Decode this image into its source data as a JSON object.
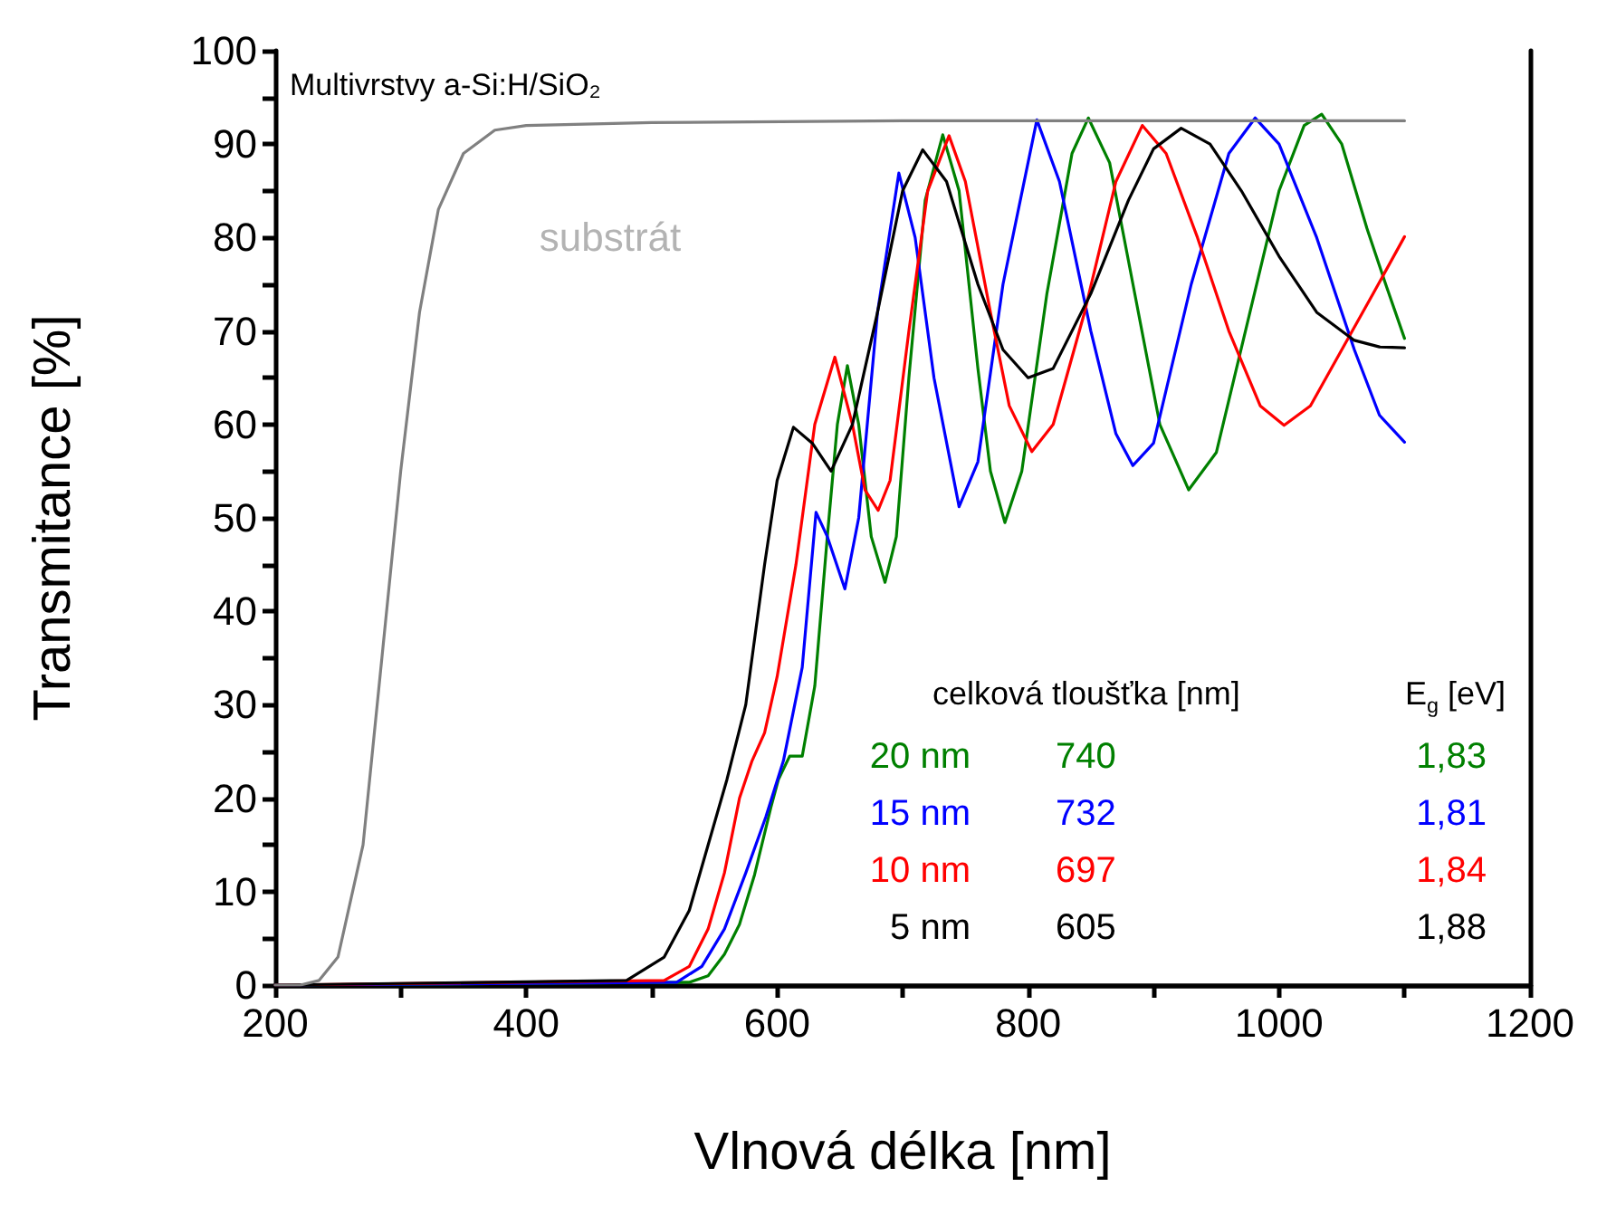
{
  "chart_data": {
    "type": "line",
    "title": "Multivrstvy a-Si:H/SiO₂",
    "xlabel": "Vlnová délka [nm]",
    "ylabel": "Transmitance [%]",
    "xlim": [
      200,
      1200
    ],
    "ylim": [
      0,
      100
    ],
    "xticks": [
      200,
      {
        "value": 300,
        "label": null
      },
      400,
      {
        "value": 500,
        "label": null
      },
      600,
      {
        "value": 700,
        "label": null
      },
      800,
      {
        "value": 900,
        "label": null
      },
      1000,
      {
        "value": 1100,
        "label": null
      },
      1200
    ],
    "yticks": [
      0,
      {
        "value": 5,
        "label": null
      },
      10,
      {
        "value": 15,
        "label": null
      },
      20,
      {
        "value": 25,
        "label": null
      },
      30,
      {
        "value": 35,
        "label": null
      },
      40,
      {
        "value": 45,
        "label": null
      },
      50,
      {
        "value": 55,
        "label": null
      },
      60,
      {
        "value": 65,
        "label": null
      },
      70,
      {
        "value": 75,
        "label": null
      },
      80,
      {
        "value": 85,
        "label": null
      },
      90,
      {
        "value": 95,
        "label": null
      },
      100
    ],
    "grid": false,
    "legend": false,
    "marker": "none",
    "line_style": "solid",
    "annotations": [
      "celková tloušťka [nm]",
      "E$_{g}$ [eV]",
      "740",
      "1,83",
      "732",
      "1,81",
      "697",
      "1,84",
      "605",
      "1,88"
    ],
    "series": [
      {
        "name": "20 nm",
        "color": "#008000",
        "x": [
          200,
          530,
          545,
          558,
          570,
          582,
          595,
          601,
          610,
          620,
          630,
          640,
          648,
          656,
          665,
          675,
          686,
          695,
          705,
          718,
          732,
          745,
          760,
          770,
          781.5,
          795,
          815,
          835,
          848,
          865,
          885,
          905,
          928,
          950,
          975,
          1000,
          1020,
          1034,
          1050,
          1070,
          1085,
          1100
        ],
        "values": [
          0,
          0.3,
          1,
          3.3,
          6.5,
          11.8,
          19,
          22,
          24.5,
          24.5,
          32,
          48,
          60,
          66.3,
          60,
          48,
          43.1,
          48,
          65,
          84,
          91,
          85,
          66,
          55,
          49.5,
          55,
          74,
          89,
          92.8,
          88,
          74,
          60,
          53,
          57,
          71,
          85,
          92,
          93.2,
          90,
          81,
          75,
          69.2
        ]
      },
      {
        "name": "15 nm",
        "color": "#0000ff",
        "x": [
          200,
          520,
          540,
          558,
          575,
          591,
          605,
          620,
          631,
          640,
          654,
          665,
          680,
          697,
          710,
          725,
          745,
          760,
          780,
          807,
          825,
          850,
          870,
          883.5,
          900,
          930,
          960,
          981,
          1000,
          1030,
          1060,
          1080,
          1100
        ],
        "values": [
          0,
          0.3,
          2,
          6,
          12,
          18,
          24,
          34,
          50.6,
          48,
          42.4,
          50,
          72,
          86.9,
          80,
          65,
          51.2,
          56,
          75,
          92.6,
          86,
          70,
          59,
          55.6,
          58,
          75,
          89,
          92.8,
          90,
          80,
          68,
          61,
          58.1
        ]
      },
      {
        "name": "10 nm",
        "color": "#ff0000",
        "x": [
          200,
          510,
          530,
          545,
          558,
          570,
          580,
          590,
          600,
          615,
          630,
          646,
          660,
          670,
          680.5,
          690,
          705,
          720,
          737,
          750,
          770,
          785,
          803,
          820,
          845,
          870,
          891,
          910,
          935,
          960,
          985,
          1004,
          1025,
          1050,
          1075,
          1100
        ],
        "values": [
          0,
          0.5,
          2,
          6,
          12,
          20,
          24,
          27,
          33,
          45,
          60,
          67.2,
          60,
          53,
          50.8,
          54,
          70,
          85,
          90.9,
          86,
          72,
          62,
          57.1,
          60,
          72,
          86,
          92,
          89,
          80,
          70,
          62,
          59.9,
          62,
          68,
          74,
          80.1
        ]
      },
      {
        "name": "5 nm",
        "color": "#000000",
        "x": [
          200,
          480,
          510,
          530,
          545,
          560,
          575,
          590,
          600,
          613,
          628,
          643,
          660,
          680,
          700,
          716,
          735,
          760,
          780,
          800,
          820,
          850,
          880,
          900,
          922,
          945,
          970,
          1000,
          1030,
          1060,
          1080,
          1100
        ],
        "values": [
          0,
          0.5,
          3,
          8,
          15,
          22,
          30,
          45,
          54,
          59.7,
          58,
          55,
          60,
          72,
          85,
          89.4,
          86,
          75,
          68,
          65,
          66,
          74,
          84,
          89.5,
          91.7,
          90,
          85,
          78,
          72,
          69,
          68.3,
          68.2
        ]
      },
      {
        "name": "substrát",
        "color": "#808080",
        "x": [
          200,
          220,
          235,
          250,
          270,
          285,
          300,
          315,
          330,
          350,
          375,
          400,
          500,
          700,
          1100
        ],
        "values": [
          0,
          0,
          0.5,
          3,
          15,
          35,
          55,
          72,
          83,
          89,
          91.5,
          92,
          92.3,
          92.5,
          92.5
        ]
      }
    ]
  }
}
